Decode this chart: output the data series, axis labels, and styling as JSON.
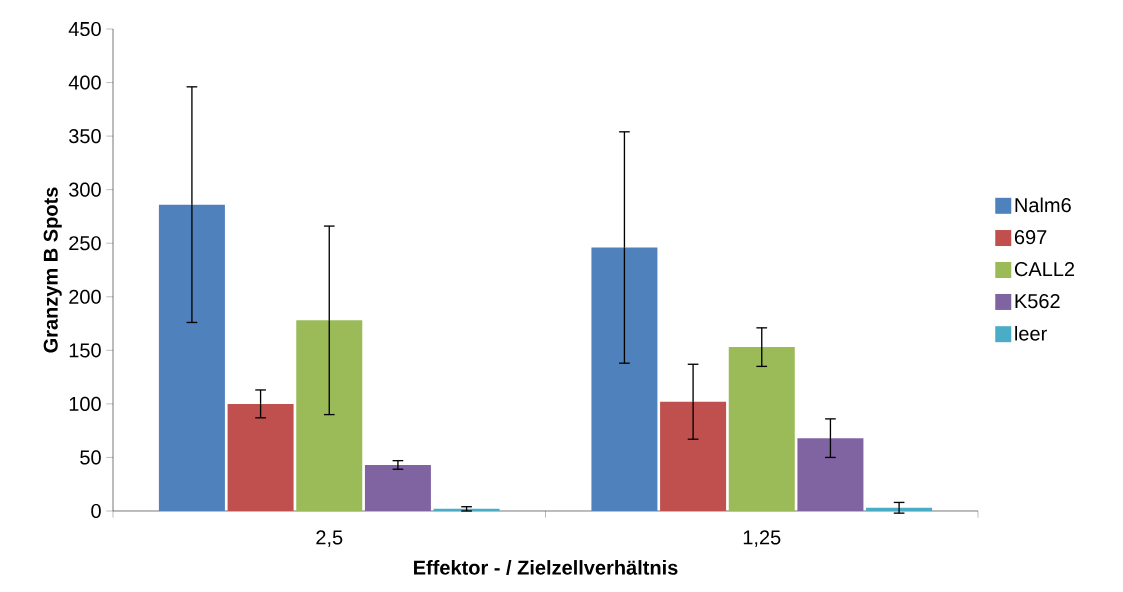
{
  "chart_data": {
    "type": "bar",
    "xlabel": "Effektor - / Zielzellverhältnis",
    "ylabel": "Granzym B Spots",
    "categories": [
      "2,5",
      "1,25"
    ],
    "series": [
      {
        "name": "Nalm6",
        "color": "#4f81bd",
        "values": [
          286,
          246
        ],
        "errors": [
          110,
          108
        ]
      },
      {
        "name": "697",
        "color": "#c0504d",
        "values": [
          100,
          102
        ],
        "errors": [
          13,
          35
        ]
      },
      {
        "name": "CALL2",
        "color": "#9bbb59",
        "values": [
          178,
          153
        ],
        "errors": [
          88,
          18
        ]
      },
      {
        "name": "K562",
        "color": "#8064a2",
        "values": [
          43,
          68
        ],
        "errors": [
          4,
          18
        ]
      },
      {
        "name": "leer",
        "color": "#4bacc6",
        "values": [
          2,
          3
        ],
        "errors": [
          2,
          5
        ]
      }
    ],
    "ylim": [
      0,
      450
    ],
    "yticks": [
      0,
      50,
      100,
      150,
      200,
      250,
      300,
      350,
      400,
      450
    ],
    "grid": false,
    "legend": "right"
  }
}
